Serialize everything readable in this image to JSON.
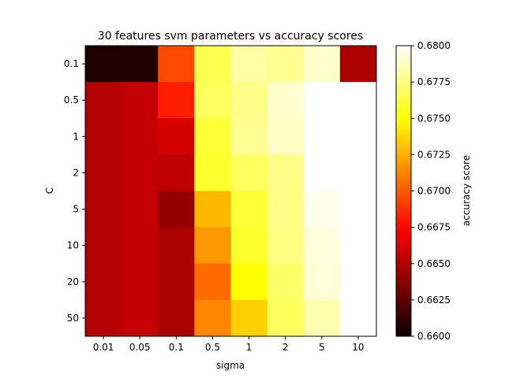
{
  "chart_data": {
    "type": "heatmap",
    "title": "30 features svm parameters vs accuracy scores",
    "xlabel": "sigma",
    "ylabel": "C",
    "x_categories": [
      "0.01",
      "0.05",
      "0.1",
      "0.5",
      "1",
      "2",
      "5",
      "10"
    ],
    "y_categories": [
      "0.1",
      "0.5",
      "1",
      "2",
      "5",
      "10",
      "20",
      "50"
    ],
    "values": [
      [
        0.66,
        0.6601,
        0.6695,
        0.6765,
        0.6782,
        0.6778,
        0.679,
        0.6642
      ],
      [
        0.6645,
        0.665,
        0.6682,
        0.6768,
        0.6776,
        0.679,
        0.68,
        0.68
      ],
      [
        0.6645,
        0.665,
        0.6655,
        0.676,
        0.6778,
        0.6788,
        0.68,
        0.68
      ],
      [
        0.6645,
        0.665,
        0.6648,
        0.6758,
        0.6768,
        0.6776,
        0.68,
        0.68
      ],
      [
        0.6645,
        0.665,
        0.6635,
        0.6728,
        0.676,
        0.6776,
        0.6796,
        0.68
      ],
      [
        0.6645,
        0.665,
        0.6642,
        0.6718,
        0.6758,
        0.6775,
        0.6793,
        0.68
      ],
      [
        0.6645,
        0.665,
        0.6642,
        0.6705,
        0.675,
        0.677,
        0.6792,
        0.68
      ],
      [
        0.6645,
        0.665,
        0.6642,
        0.6713,
        0.6735,
        0.6768,
        0.6784,
        0.68
      ]
    ],
    "colormap": "hot",
    "colorbar": {
      "label": "accuracy score",
      "min": 0.66,
      "max": 0.68,
      "ticks": [
        "0.6600",
        "0.6625",
        "0.6650",
        "0.6675",
        "0.6700",
        "0.6725",
        "0.6750",
        "0.6775",
        "0.6800"
      ]
    }
  }
}
